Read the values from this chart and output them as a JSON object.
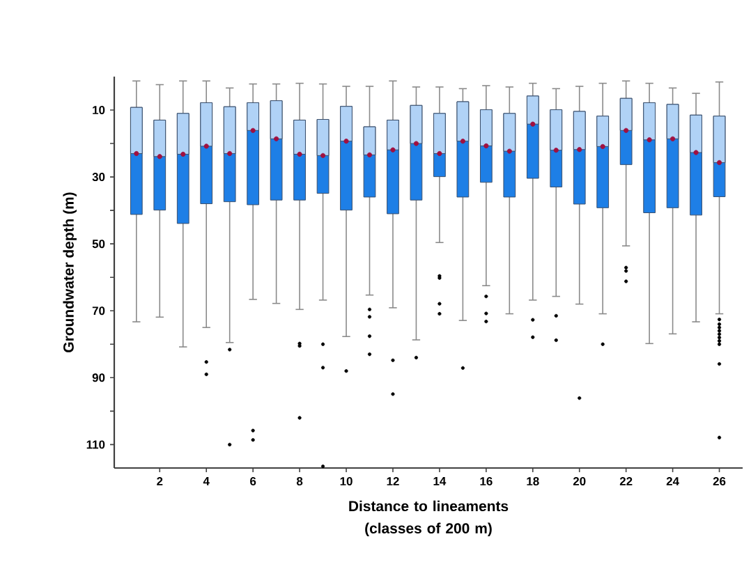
{
  "chart_data": {
    "type": "box",
    "xlabel": "Distance to lineaments (classes of 200 m)",
    "ylabel": "Groundwater depth (m)",
    "categories": [
      null,
      "2",
      null,
      "4",
      null,
      "6",
      null,
      "8",
      null,
      "10",
      null,
      "12",
      null,
      "14",
      null,
      "16",
      null,
      "18",
      null,
      "20",
      null,
      "22",
      null,
      "24",
      null,
      "26"
    ],
    "color": "#1e7fe6",
    "ylim": [
      117,
      0
    ],
    "yticks": [
      10,
      {
        "value": 20,
        "label": null
      },
      30,
      {
        "value": 40,
        "label": null
      },
      50,
      {
        "value": 60,
        "label": null
      },
      70,
      {
        "value": 80,
        "label": null
      },
      90,
      {
        "value": 100,
        "label": null
      },
      110
    ],
    "boxes": [
      {
        "low": 1.3,
        "q1": 9.2,
        "median": 23.0,
        "mean": 23.0,
        "q3": 41.2,
        "high": 73.3
      },
      {
        "low": 2.4,
        "q1": 13.0,
        "median": 23.9,
        "mean": 23.9,
        "q3": 39.9,
        "high": 71.9
      },
      {
        "low": 1.3,
        "q1": 11.0,
        "median": 23.2,
        "mean": 23.2,
        "q3": 43.9,
        "high": 80.8
      },
      {
        "low": 1.3,
        "q1": 7.8,
        "median": 20.8,
        "mean": 20.8,
        "q3": 38.0,
        "high": 75.0,
        "outliers": [
          85.3,
          89.0
        ]
      },
      {
        "low": 3.4,
        "q1": 9.0,
        "median": 23.0,
        "mean": 23.0,
        "q3": 37.4,
        "high": 79.5,
        "outliers": [
          81.6,
          110.0
        ]
      },
      {
        "low": 2.2,
        "q1": 7.8,
        "median": 16.1,
        "mean": 16.1,
        "q3": 38.3,
        "high": 66.6,
        "outliers": [
          105.8,
          108.6
        ]
      },
      {
        "low": 2.2,
        "q1": 7.2,
        "median": 18.6,
        "mean": 18.6,
        "q3": 36.9,
        "high": 67.8
      },
      {
        "low": 2.0,
        "q1": 13.0,
        "median": 23.2,
        "mean": 23.2,
        "q3": 36.9,
        "high": 69.6,
        "outliers": [
          79.8,
          80.5,
          102.0
        ]
      },
      {
        "low": 2.2,
        "q1": 12.8,
        "median": 23.6,
        "mean": 23.6,
        "q3": 34.9,
        "high": 66.8,
        "outliers": [
          80.0,
          87.0,
          116.5
        ]
      },
      {
        "low": 2.9,
        "q1": 8.9,
        "median": 19.3,
        "mean": 19.3,
        "q3": 39.9,
        "high": 77.7,
        "outliers": [
          88.0
        ]
      },
      {
        "low": 2.9,
        "q1": 15.0,
        "median": 23.4,
        "mean": 23.4,
        "q3": 36.0,
        "high": 65.3,
        "outliers": [
          69.6,
          71.8,
          77.6,
          83.0
        ]
      },
      {
        "low": 1.3,
        "q1": 13.0,
        "median": 21.9,
        "mean": 21.9,
        "q3": 41.0,
        "high": 69.1,
        "outliers": [
          84.8,
          94.9
        ]
      },
      {
        "low": 3.1,
        "q1": 8.6,
        "median": 20.0,
        "mean": 20.0,
        "q3": 36.9,
        "high": 78.7,
        "outliers": [
          84.0
        ]
      },
      {
        "low": 3.1,
        "q1": 11.0,
        "median": 23.0,
        "mean": 23.0,
        "q3": 29.9,
        "high": 49.6,
        "outliers": [
          59.6,
          60.2,
          67.9,
          70.9
        ]
      },
      {
        "low": 3.6,
        "q1": 7.5,
        "median": 19.3,
        "mean": 19.3,
        "q3": 36.0,
        "high": 72.9,
        "outliers": [
          87.1
        ]
      },
      {
        "low": 2.7,
        "q1": 9.9,
        "median": 20.7,
        "mean": 20.7,
        "q3": 31.6,
        "high": 62.5,
        "outliers": [
          65.7,
          70.8,
          73.2
        ]
      },
      {
        "low": 3.1,
        "q1": 11.0,
        "median": 22.3,
        "mean": 22.3,
        "q3": 36.0,
        "high": 70.9
      },
      {
        "low": 2.0,
        "q1": 5.8,
        "median": 14.2,
        "mean": 14.2,
        "q3": 30.4,
        "high": 66.8,
        "outliers": [
          72.7,
          77.9
        ]
      },
      {
        "low": 3.6,
        "q1": 9.9,
        "median": 22.0,
        "mean": 22.0,
        "q3": 33.0,
        "high": 65.7,
        "outliers": [
          71.5,
          78.8
        ]
      },
      {
        "low": 2.9,
        "q1": 10.4,
        "median": 21.8,
        "mean": 21.8,
        "q3": 38.1,
        "high": 68.0,
        "outliers": [
          96.1
        ]
      },
      {
        "low": 2.0,
        "q1": 11.8,
        "median": 20.9,
        "mean": 20.9,
        "q3": 39.2,
        "high": 70.9,
        "outliers": [
          80.0
        ]
      },
      {
        "low": 1.3,
        "q1": 6.5,
        "median": 16.1,
        "mean": 16.1,
        "q3": 26.3,
        "high": 50.6,
        "outliers": [
          57.1,
          58.1,
          61.2
        ]
      },
      {
        "low": 2.0,
        "q1": 7.8,
        "median": 18.9,
        "mean": 18.9,
        "q3": 40.7,
        "high": 79.8
      },
      {
        "low": 3.4,
        "q1": 8.3,
        "median": 18.6,
        "mean": 18.6,
        "q3": 39.2,
        "high": 76.9
      },
      {
        "low": 5.0,
        "q1": 11.5,
        "median": 22.7,
        "mean": 22.7,
        "q3": 41.4,
        "high": 73.3
      },
      {
        "low": 1.6,
        "q1": 11.8,
        "median": 25.7,
        "mean": 25.7,
        "q3": 35.9,
        "high": 70.9,
        "outliers": [
          72.6,
          74.0,
          75.0,
          76.0,
          77.0,
          78.0,
          79.0,
          80.0,
          85.9,
          107.9
        ]
      }
    ]
  }
}
